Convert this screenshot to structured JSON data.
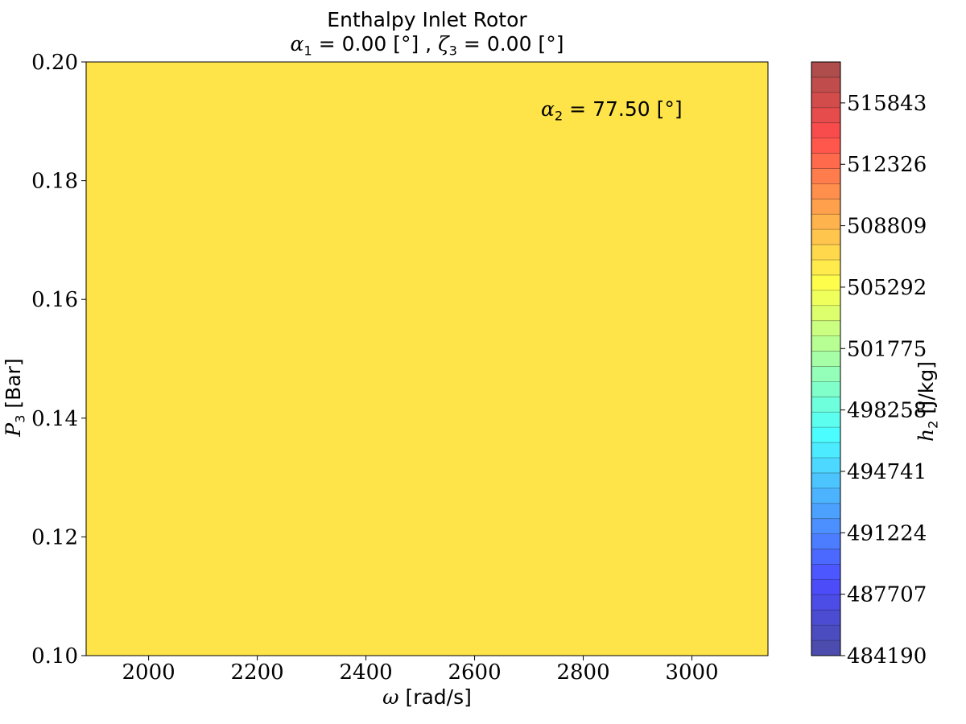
{
  "chart_data": {
    "type": "heatmap",
    "title": "Enthalpy Inlet Rotor",
    "subtitle": {
      "alpha1_symbol": "α",
      "alpha1_sub": "1",
      "alpha1_text": " = 0.00 [°] , ",
      "zeta3_symbol": "ζ",
      "zeta3_sub": "3",
      "zeta3_text": " = 0.00 [°]"
    },
    "annotation": {
      "symbol": "α",
      "sub": "2",
      "text": " = 77.50 [°]"
    },
    "xlabel": {
      "symbol": "ω",
      "text": " [rad/s]"
    },
    "ylabel": {
      "symbol": "P",
      "sub": "3",
      "text": " [Bar]"
    },
    "colorbar_label": {
      "symbol": "h",
      "sub": "2",
      "text": " [J/kg]"
    },
    "x_ticks": [
      "2000",
      "2200",
      "2400",
      "2600",
      "2800",
      "3000"
    ],
    "y_ticks": [
      "0.10",
      "0.12",
      "0.14",
      "0.16",
      "0.18",
      "0.20"
    ],
    "xlim": [
      1885,
      3140
    ],
    "ylim": [
      0.1,
      0.2
    ],
    "x_tick_values": [
      2000,
      2200,
      2400,
      2600,
      2800,
      3000
    ],
    "y_tick_values": [
      0.1,
      0.12,
      0.14,
      0.16,
      0.18,
      0.2
    ],
    "field_value": 507000,
    "field_color": "#fee449",
    "colorbar": {
      "range": [
        484190,
        518188
      ],
      "ticks": [
        "484190",
        "487707",
        "491224",
        "494741",
        "498258",
        "501775",
        "505292",
        "508809",
        "512326",
        "515843"
      ],
      "tick_values": [
        484190,
        487707,
        491224,
        494741,
        498258,
        501775,
        505292,
        508809,
        512326,
        515843
      ],
      "levels": 39,
      "colormap": "jet",
      "alpha": 0.7
    }
  }
}
